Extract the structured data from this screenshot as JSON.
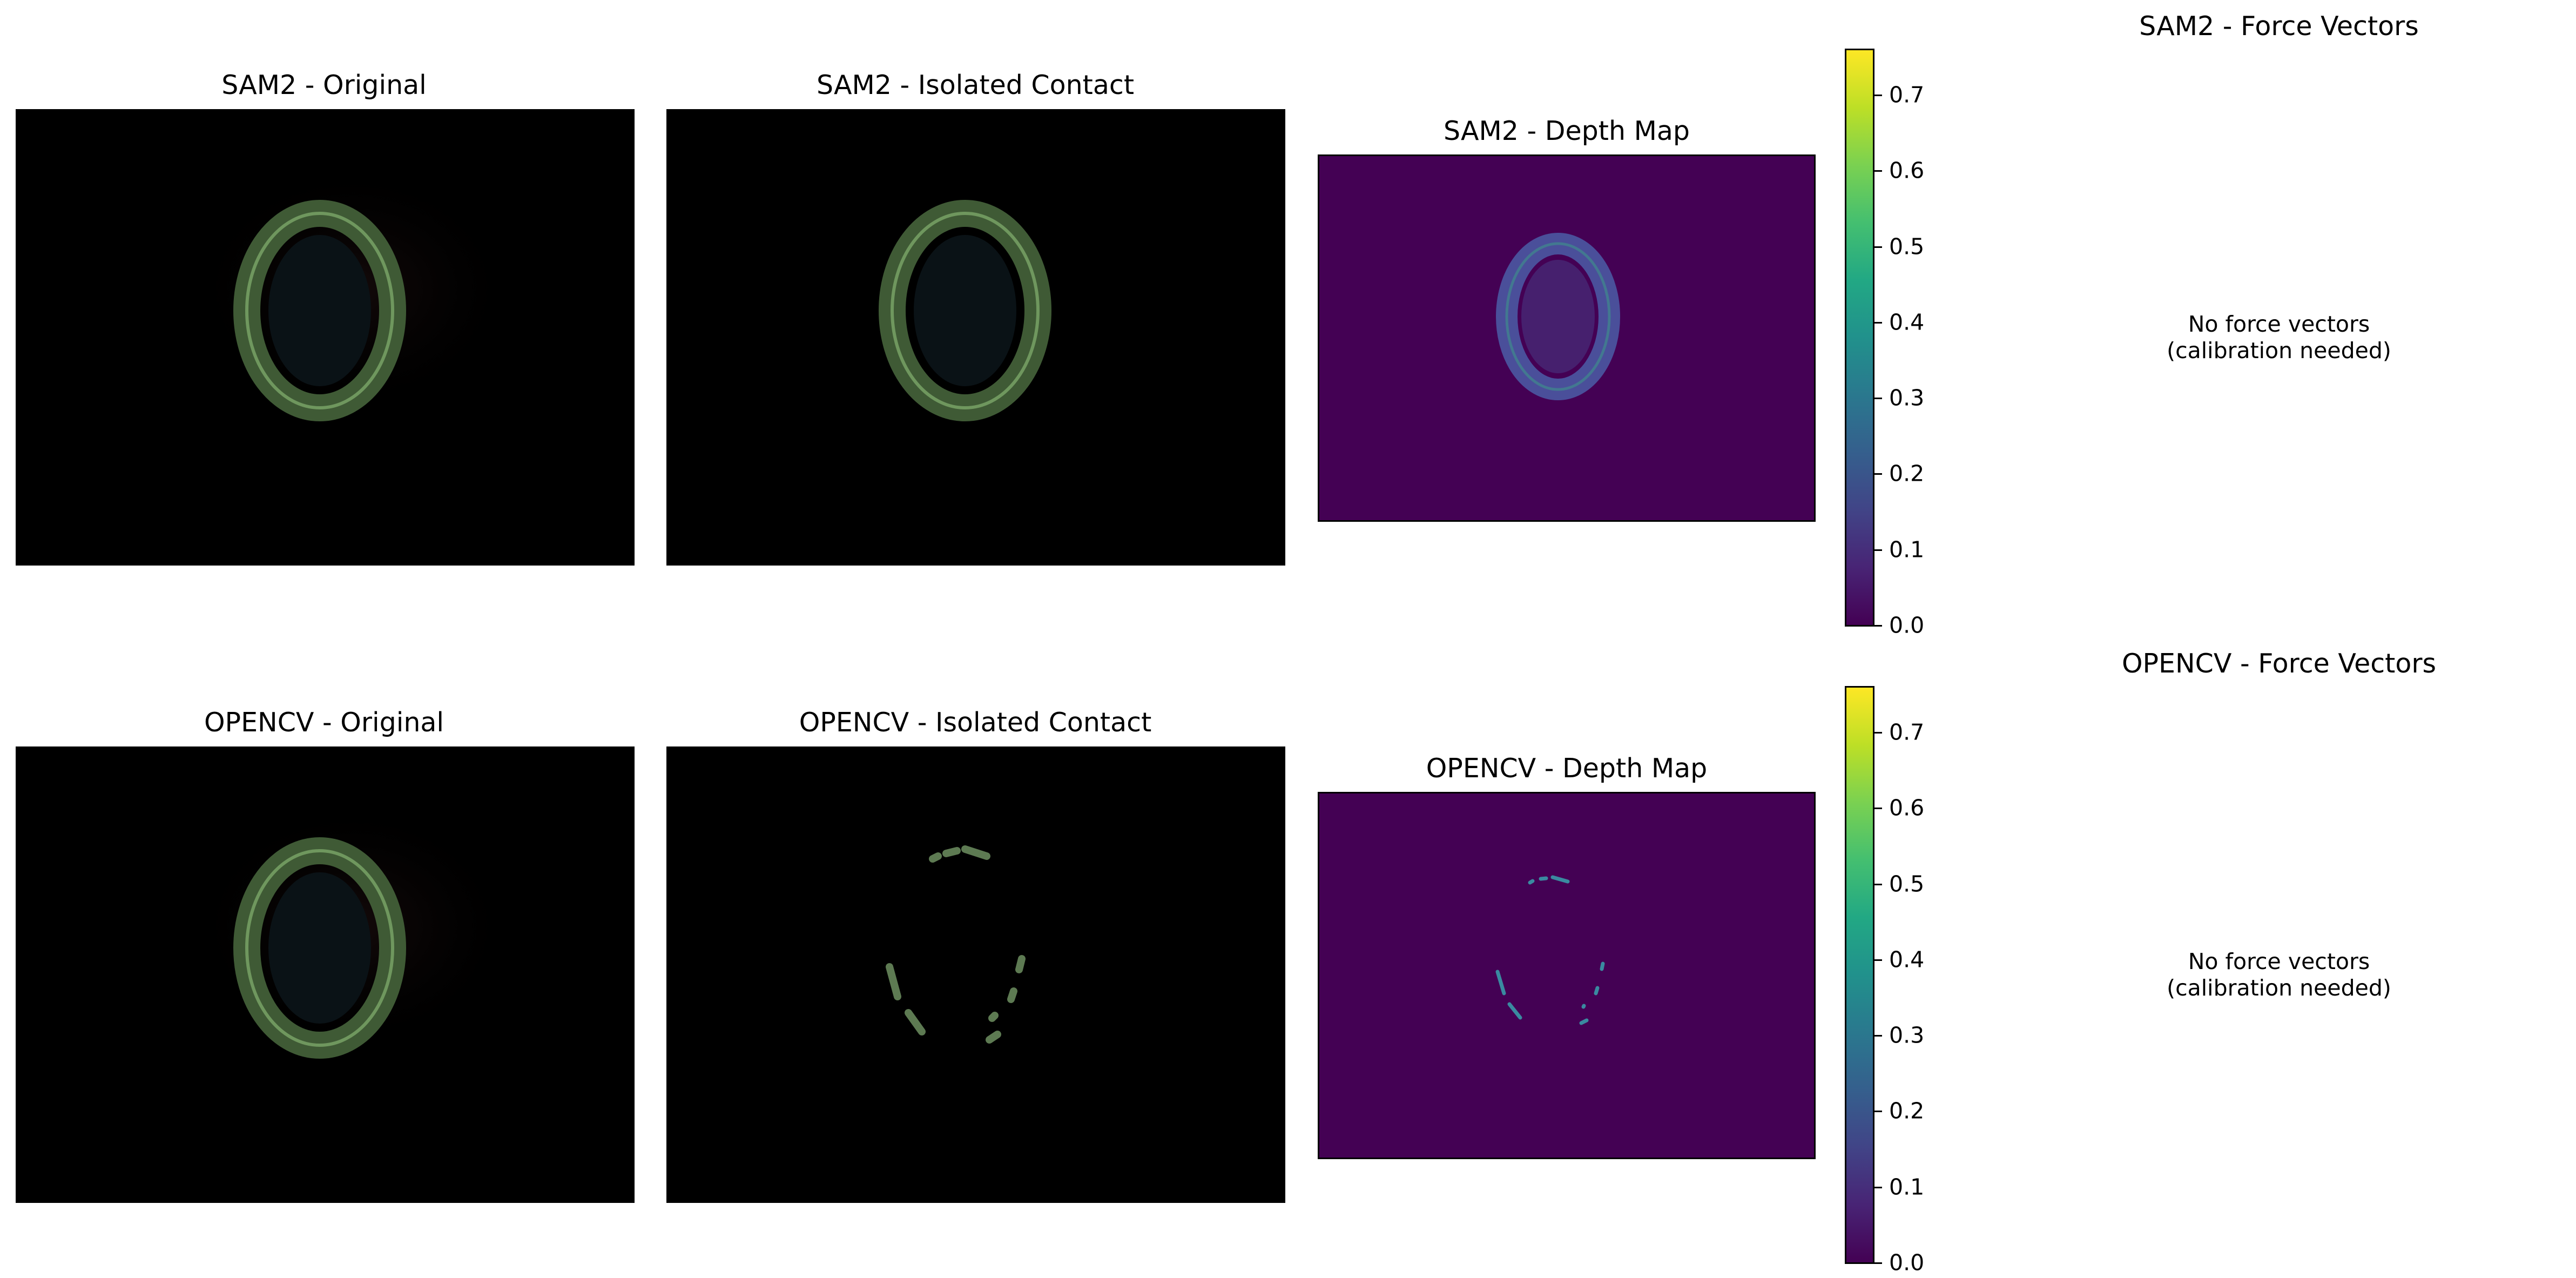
{
  "rows": [
    {
      "original_title": "SAM2 - Original",
      "isolated_title": "SAM2 - Isolated Contact",
      "depth_title": "SAM2 - Depth Map",
      "force_title": "SAM2 - Force Vectors",
      "force_message": "No force vectors\n(calibration needed)"
    },
    {
      "original_title": "OPENCV - Original",
      "isolated_title": "OPENCV - Isolated Contact",
      "depth_title": "OPENCV - Depth Map",
      "force_title": "OPENCV - Force Vectors",
      "force_message": "No force vectors\n(calibration needed)"
    }
  ],
  "colorbar": {
    "ticks": [
      "0.0",
      "0.1",
      "0.2",
      "0.3",
      "0.4",
      "0.5",
      "0.6",
      "0.7"
    ],
    "min": 0.0,
    "max": 0.76,
    "colormap": "viridis",
    "background_color": "#440154"
  }
}
